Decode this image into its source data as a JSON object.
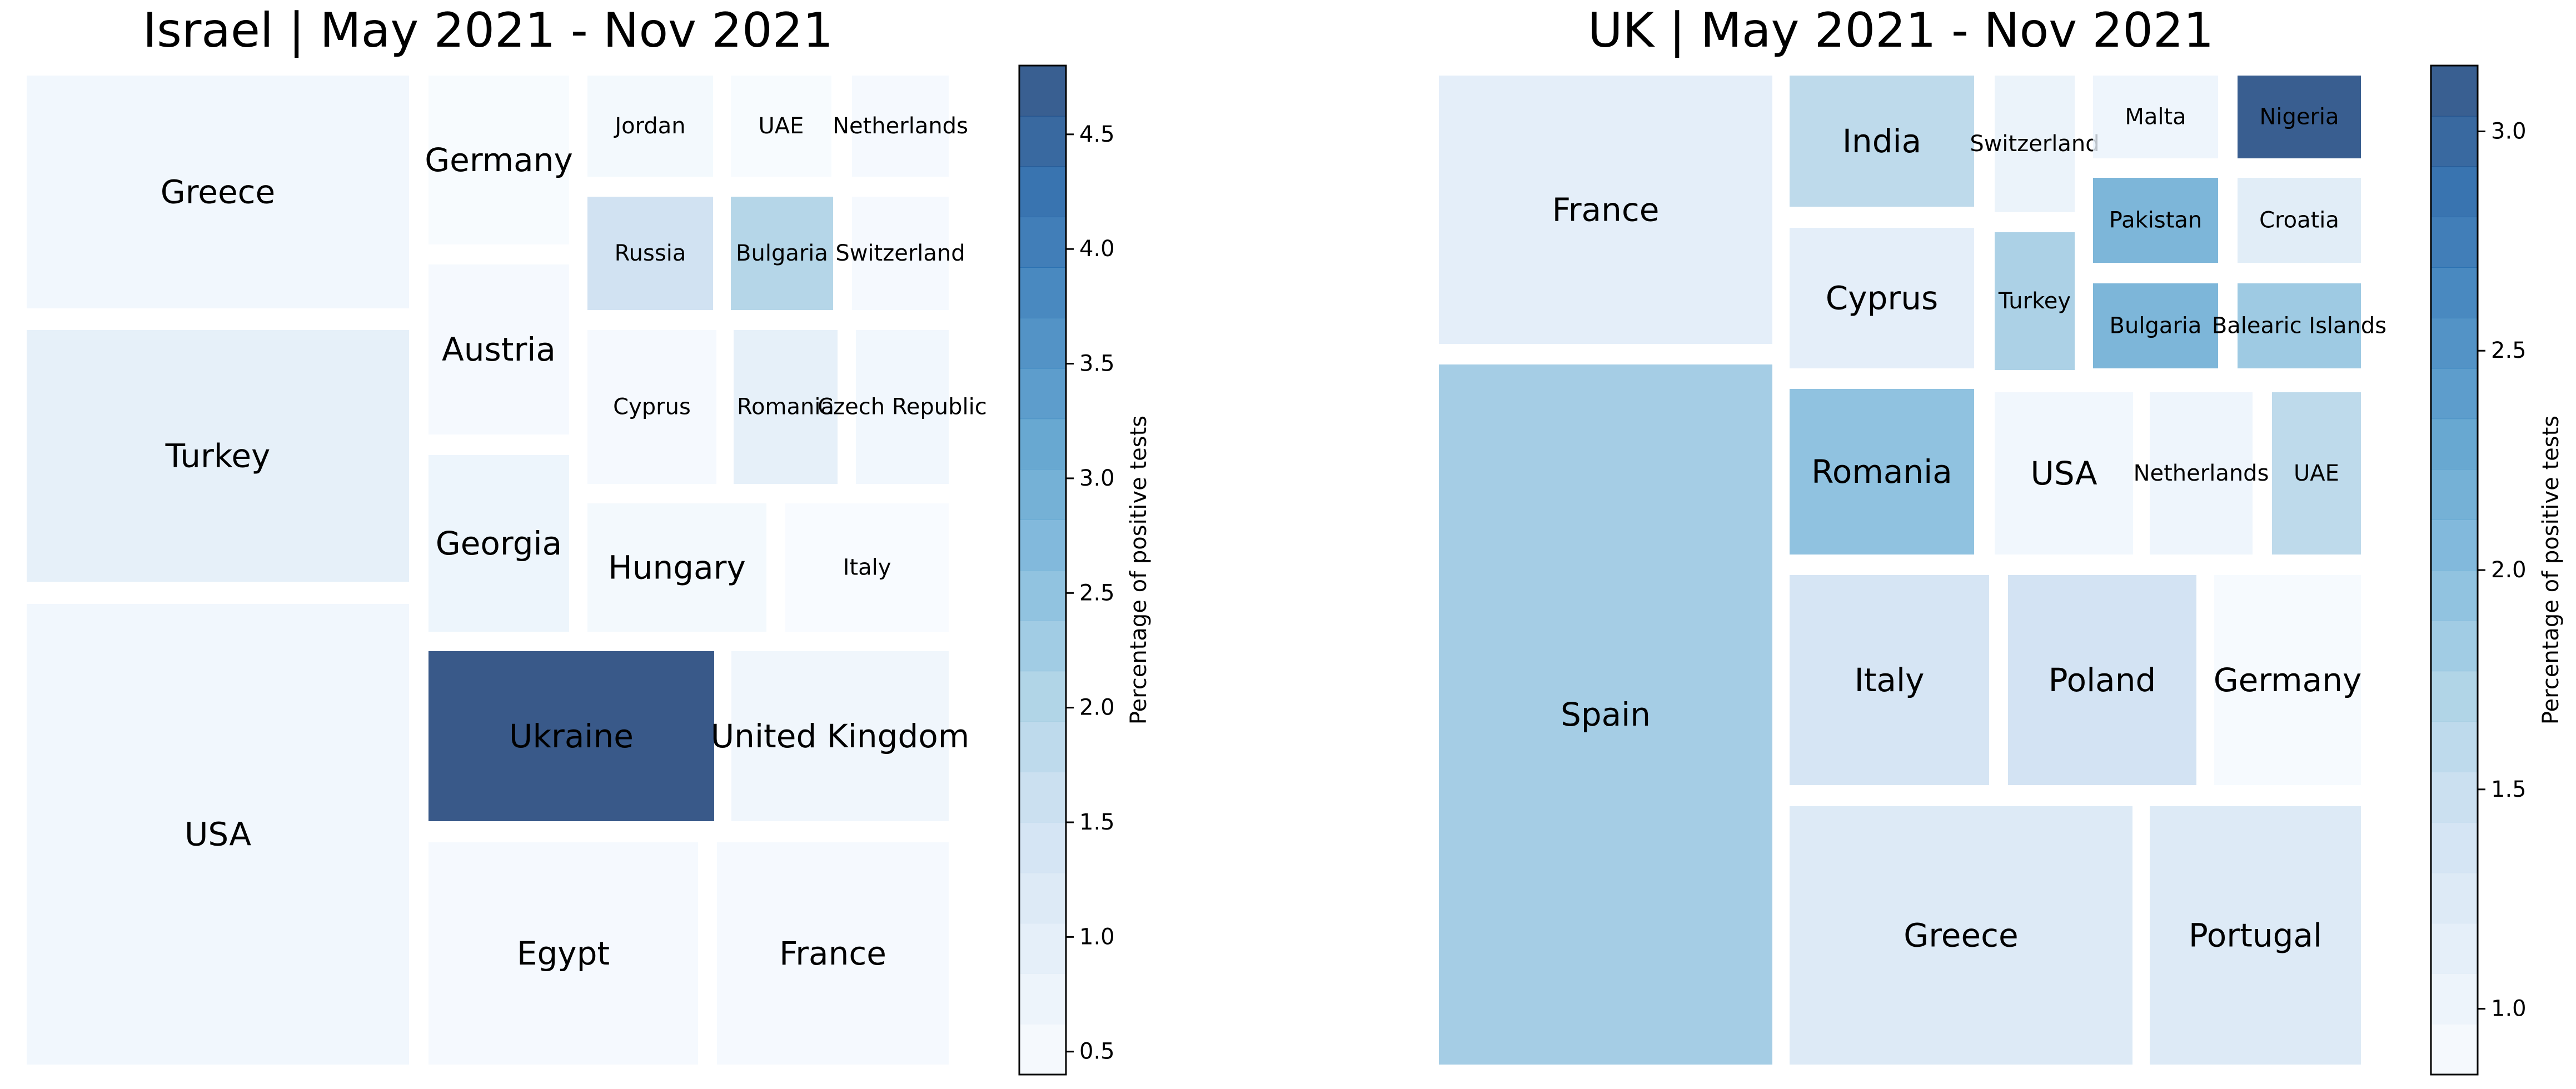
{
  "colormap": {
    "name": "Blues",
    "stops": [
      "#f7fbff",
      "#deebf7",
      "#c6dbef",
      "#9ecae1",
      "#6baed6",
      "#4292c6",
      "#2171b5",
      "#08519c",
      "#08306b"
    ]
  },
  "chart_data": [
    {
      "type": "treemap",
      "title": "Israel | May 2021 - Nov 2021",
      "colorbar": {
        "label": "Percentage of positive tests",
        "range": [
          0.4,
          4.8
        ],
        "ticks": [
          "0.5",
          "1.0",
          "1.5",
          "2.0",
          "2.5",
          "3.0",
          "3.5",
          "4.0",
          "4.5"
        ],
        "tick_values": [
          0.5,
          1.0,
          1.5,
          2.0,
          2.5,
          3.0,
          3.5,
          4.0,
          4.5
        ]
      },
      "cells": [
        {
          "label": "Greece",
          "value": 0.6
        },
        {
          "label": "Turkey",
          "value": 0.9
        },
        {
          "label": "USA",
          "value": 0.6
        },
        {
          "label": "Germany",
          "value": 0.45
        },
        {
          "label": "Austria",
          "value": 0.5
        },
        {
          "label": "Georgia",
          "value": 0.7
        },
        {
          "label": "Jordan",
          "value": 0.55
        },
        {
          "label": "UAE",
          "value": 0.45
        },
        {
          "label": "Netherlands",
          "value": 0.5
        },
        {
          "label": "Russia",
          "value": 1.5
        },
        {
          "label": "Bulgaria",
          "value": 2.0
        },
        {
          "label": "Switzerland",
          "value": 0.5
        },
        {
          "label": "Cyprus",
          "value": 0.5
        },
        {
          "label": "Romania",
          "value": 0.9
        },
        {
          "label": "Czech Republic",
          "value": 0.6
        },
        {
          "label": "Hungary",
          "value": 0.55
        },
        {
          "label": "Italy",
          "value": 0.42
        },
        {
          "label": "Ukraine",
          "value": 4.8
        },
        {
          "label": "United Kingdom",
          "value": 0.65
        },
        {
          "label": "Egypt",
          "value": 0.5
        },
        {
          "label": "France",
          "value": 0.5
        }
      ]
    },
    {
      "type": "treemap",
      "title": "UK | May 2021 - Nov 2021",
      "colorbar": {
        "label": "Percentage of positive tests",
        "range": [
          0.85,
          3.15
        ],
        "ticks": [
          "1.0",
          "1.5",
          "2.0",
          "2.5",
          "3.0"
        ],
        "tick_values": [
          1.0,
          1.5,
          2.0,
          2.5,
          3.0
        ]
      },
      "cells": [
        {
          "label": "France",
          "value": 1.15
        },
        {
          "label": "Spain",
          "value": 1.8
        },
        {
          "label": "India",
          "value": 1.6
        },
        {
          "label": "Switzerland",
          "value": 1.05
        },
        {
          "label": "Malta",
          "value": 1.0
        },
        {
          "label": "Nigeria",
          "value": 3.1
        },
        {
          "label": "Cyprus",
          "value": 1.15
        },
        {
          "label": "Turkey",
          "value": 1.75
        },
        {
          "label": "Pakistan",
          "value": 2.1
        },
        {
          "label": "Croatia",
          "value": 1.2
        },
        {
          "label": "Bulgaria",
          "value": 2.1
        },
        {
          "label": "Balearic Islands",
          "value": 1.85
        },
        {
          "label": "Romania",
          "value": 1.95
        },
        {
          "label": "USA",
          "value": 0.95
        },
        {
          "label": "Netherlands",
          "value": 1.0
        },
        {
          "label": "UAE",
          "value": 1.6
        },
        {
          "label": "Italy",
          "value": 1.35
        },
        {
          "label": "Poland",
          "value": 1.4
        },
        {
          "label": "Germany",
          "value": 0.88
        },
        {
          "label": "Greece",
          "value": 1.25
        },
        {
          "label": "Portugal",
          "value": 1.25
        }
      ]
    }
  ]
}
